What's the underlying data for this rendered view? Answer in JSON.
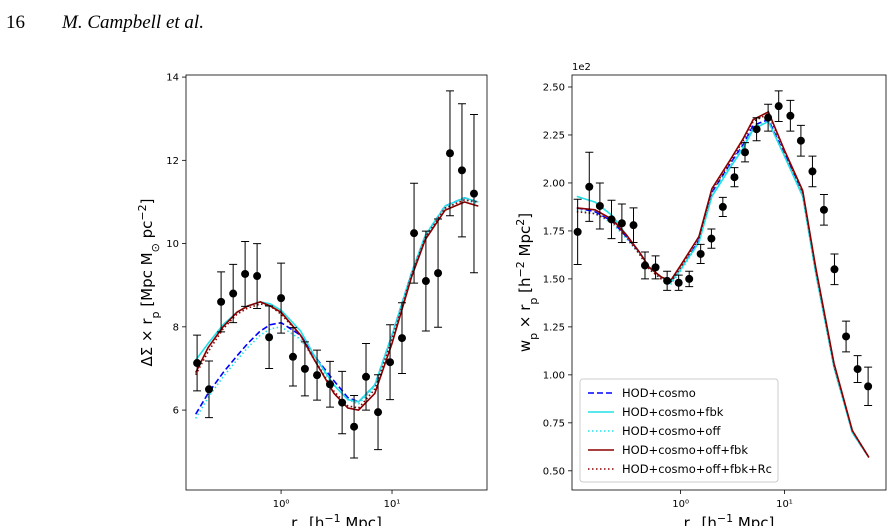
{
  "header": {
    "page_number": "16",
    "running_head": "M. Campbell et al."
  },
  "chart_data": [
    {
      "type": "line",
      "ylabel": [
        {
          "t": "ΔΣ × r",
          "s": "base"
        },
        {
          "t": "p",
          "s": "sub"
        },
        {
          "t": " [Mpc M",
          "s": "base"
        },
        {
          "t": "⊙",
          "s": "sub"
        },
        {
          "t": " pc",
          "s": "base"
        },
        {
          "t": "−2",
          "s": "sup"
        },
        {
          "t": "]",
          "s": "base"
        }
      ],
      "xlabel": [
        {
          "t": "r",
          "s": "base"
        },
        {
          "t": "p",
          "s": "sub"
        },
        {
          "t": " [h",
          "s": "base"
        },
        {
          "t": "−1",
          "s": "sup"
        },
        {
          "t": " Mpc]",
          "s": "base"
        }
      ],
      "xscale": "log",
      "xlim": [
        0.139,
        71.8
      ],
      "xticks": [
        {
          "value": 1,
          "label": "10⁰"
        },
        {
          "value": 10,
          "label": "10¹"
        }
      ],
      "ylim": [
        4.08,
        14.05
      ],
      "yticks": [
        6,
        8,
        10,
        12,
        14
      ],
      "x": [
        0.17,
        0.22,
        0.3,
        0.4,
        0.5,
        0.65,
        0.8,
        1,
        1.5,
        2,
        3,
        4,
        5,
        7,
        10,
        15,
        20,
        30,
        45,
        60
      ],
      "series": [
        {
          "name": "HOD+cosmo",
          "color": "#0000ff",
          "dash": "dashed",
          "values": [
            5.9,
            6.4,
            6.9,
            7.3,
            7.6,
            7.9,
            8.05,
            8.1,
            7.8,
            7.3,
            6.7,
            6.3,
            6.2,
            6.6,
            7.8,
            9.3,
            10.2,
            10.9,
            11.1,
            11.0
          ]
        },
        {
          "name": "HOD+cosmo+fbk",
          "color": "#22e0e8",
          "dash": "solid",
          "values": [
            7.2,
            7.6,
            8.05,
            8.35,
            8.5,
            8.6,
            8.55,
            8.4,
            7.9,
            7.3,
            6.6,
            6.25,
            6.2,
            6.6,
            7.8,
            9.3,
            10.2,
            10.9,
            11.1,
            11.0
          ]
        },
        {
          "name": "HOD+cosmo+off",
          "color": "#22e0e8",
          "dash": "dotted",
          "values": [
            5.8,
            6.3,
            6.8,
            7.2,
            7.5,
            7.8,
            7.95,
            8.0,
            7.7,
            7.2,
            6.6,
            6.25,
            6.15,
            6.55,
            7.75,
            9.25,
            10.15,
            10.85,
            11.05,
            10.95
          ]
        },
        {
          "name": "HOD+cosmo+off+fbk",
          "color": "#8b0000",
          "dash": "solid",
          "values": [
            6.9,
            7.5,
            8.0,
            8.35,
            8.5,
            8.6,
            8.5,
            8.35,
            7.8,
            7.2,
            6.4,
            6.05,
            6.0,
            6.4,
            7.6,
            9.2,
            10.1,
            10.8,
            11.0,
            10.9
          ]
        },
        {
          "name": "HOD+cosmo+off+fbk+Rc",
          "color": "#8b0000",
          "dash": "dotted",
          "values": [
            6.85,
            7.4,
            7.95,
            8.3,
            8.45,
            8.55,
            8.5,
            8.3,
            7.8,
            7.2,
            6.45,
            6.1,
            6.05,
            6.5,
            7.7,
            9.25,
            10.15,
            10.85,
            11.05,
            11.0
          ]
        }
      ],
      "points": {
        "color": "#000000",
        "x": [
          0.175,
          0.224,
          0.288,
          0.37,
          0.474,
          0.608,
          0.78,
          1.0,
          1.28,
          1.64,
          2.11,
          2.76,
          3.55,
          4.55,
          5.83,
          7.48,
          9.6,
          12.3,
          15.8,
          20.2,
          26,
          33.3,
          42.7,
          54.8
        ],
        "values": [
          7.13,
          6.5,
          8.6,
          8.8,
          9.27,
          9.22,
          7.75,
          8.69,
          7.28,
          6.99,
          6.84,
          6.62,
          6.18,
          5.6,
          6.8,
          5.95,
          7.15,
          7.73,
          10.25,
          9.1,
          9.29,
          12.17,
          11.76,
          11.2
        ],
        "errors": [
          0.67,
          0.68,
          0.72,
          0.7,
          0.78,
          0.78,
          0.75,
          0.84,
          0.7,
          0.65,
          0.6,
          0.55,
          0.75,
          0.75,
          0.8,
          0.9,
          0.9,
          0.85,
          1.2,
          1.2,
          1.3,
          1.5,
          1.6,
          1.9
        ]
      }
    },
    {
      "type": "line",
      "ylabel": [
        {
          "t": "w",
          "s": "base"
        },
        {
          "t": "p",
          "s": "sub"
        },
        {
          "t": " × r",
          "s": "base"
        },
        {
          "t": "p",
          "s": "sub"
        },
        {
          "t": " [h",
          "s": "base"
        },
        {
          "t": "−2",
          "s": "sup"
        },
        {
          "t": " Mpc",
          "s": "base"
        },
        {
          "t": "2",
          "s": "sup"
        },
        {
          "t": "]",
          "s": "base"
        }
      ],
      "xlabel": [
        {
          "t": "r",
          "s": "base"
        },
        {
          "t": "p",
          "s": "sub"
        },
        {
          "t": " [h",
          "s": "base"
        },
        {
          "t": "−1",
          "s": "sup"
        },
        {
          "t": " Mpc]",
          "s": "base"
        }
      ],
      "y_offset_label": "1e2",
      "xscale": "log",
      "xlim": [
        0.09,
        95
      ],
      "xticks": [
        {
          "value": 1,
          "label": "10⁰"
        },
        {
          "value": 10,
          "label": "10¹"
        }
      ],
      "ylim": [
        0.4,
        2.5625
      ],
      "yticks": [
        {
          "value": 0.5,
          "label": "0.50"
        },
        {
          "value": 0.75,
          "label": "0.75"
        },
        {
          "value": 1.0,
          "label": "1.00"
        },
        {
          "value": 1.25,
          "label": "1.25"
        },
        {
          "value": 1.5,
          "label": "1.50"
        },
        {
          "value": 1.75,
          "label": "1.75"
        },
        {
          "value": 2.0,
          "label": "2.00"
        },
        {
          "value": 2.25,
          "label": "2.25"
        },
        {
          "value": 2.5,
          "label": "2.50"
        }
      ],
      "legend": "lower left",
      "x": [
        0.1,
        0.15,
        0.22,
        0.3,
        0.4,
        0.5,
        0.65,
        0.8,
        1,
        1.5,
        2,
        3,
        4,
        5,
        7,
        10,
        15,
        20,
        30,
        45,
        65
      ],
      "series": [
        {
          "name": "HOD+cosmo",
          "color": "#0000ff",
          "dash": "dashed",
          "values": [
            1.87,
            1.85,
            1.8,
            1.72,
            1.64,
            1.56,
            1.51,
            1.48,
            1.55,
            1.7,
            1.95,
            2.1,
            2.2,
            2.3,
            2.33,
            2.15,
            1.95,
            1.55,
            1.05,
            0.7,
            0.57
          ]
        },
        {
          "name": "HOD+cosmo+fbk",
          "color": "#22e0e8",
          "dash": "solid",
          "values": [
            1.93,
            1.9,
            1.83,
            1.73,
            1.64,
            1.56,
            1.51,
            1.48,
            1.55,
            1.69,
            1.93,
            2.08,
            2.18,
            2.28,
            2.32,
            2.14,
            1.93,
            1.53,
            1.04,
            0.7,
            0.57
          ]
        },
        {
          "name": "HOD+cosmo+off",
          "color": "#22e0e8",
          "dash": "dotted",
          "values": [
            1.86,
            1.84,
            1.79,
            1.71,
            1.63,
            1.55,
            1.5,
            1.47,
            1.54,
            1.69,
            1.94,
            2.09,
            2.19,
            2.29,
            2.32,
            2.14,
            1.94,
            1.54,
            1.04,
            0.7,
            0.57
          ]
        },
        {
          "name": "HOD+cosmo+off+fbk",
          "color": "#8b0000",
          "dash": "solid",
          "values": [
            1.87,
            1.86,
            1.81,
            1.73,
            1.64,
            1.56,
            1.51,
            1.49,
            1.57,
            1.72,
            1.97,
            2.12,
            2.23,
            2.33,
            2.37,
            2.17,
            1.96,
            1.56,
            1.06,
            0.71,
            0.57
          ]
        },
        {
          "name": "HOD+cosmo+off+fbk+Rc",
          "color": "#8b0000",
          "dash": "dotted",
          "values": [
            1.85,
            1.84,
            1.8,
            1.72,
            1.63,
            1.55,
            1.5,
            1.48,
            1.56,
            1.71,
            1.96,
            2.11,
            2.22,
            2.32,
            2.36,
            2.16,
            1.95,
            1.55,
            1.05,
            0.71,
            0.57
          ]
        }
      ],
      "points": {
        "color": "#000000",
        "x": [
          0.102,
          0.132,
          0.167,
          0.216,
          0.272,
          0.352,
          0.454,
          0.574,
          0.742,
          0.958,
          1.21,
          1.56,
          1.98,
          2.55,
          3.3,
          4.17,
          5.39,
          6.96,
          8.8,
          11.4,
          14.4,
          18.6,
          24.0,
          30.3,
          39.2,
          50.6,
          63.9
        ],
        "values": [
          1.745,
          1.98,
          1.88,
          1.81,
          1.79,
          1.78,
          1.57,
          1.56,
          1.49,
          1.48,
          1.5,
          1.63,
          1.71,
          1.875,
          2.03,
          2.16,
          2.28,
          2.34,
          2.4,
          2.35,
          2.22,
          2.06,
          1.86,
          1.55,
          1.2,
          1.03,
          0.94
        ],
        "errors": [
          0.17,
          0.18,
          0.12,
          0.1,
          0.1,
          0.09,
          0.07,
          0.06,
          0.05,
          0.04,
          0.04,
          0.05,
          0.05,
          0.05,
          0.05,
          0.05,
          0.06,
          0.07,
          0.08,
          0.08,
          0.08,
          0.08,
          0.08,
          0.08,
          0.08,
          0.07,
          0.1
        ]
      }
    }
  ]
}
